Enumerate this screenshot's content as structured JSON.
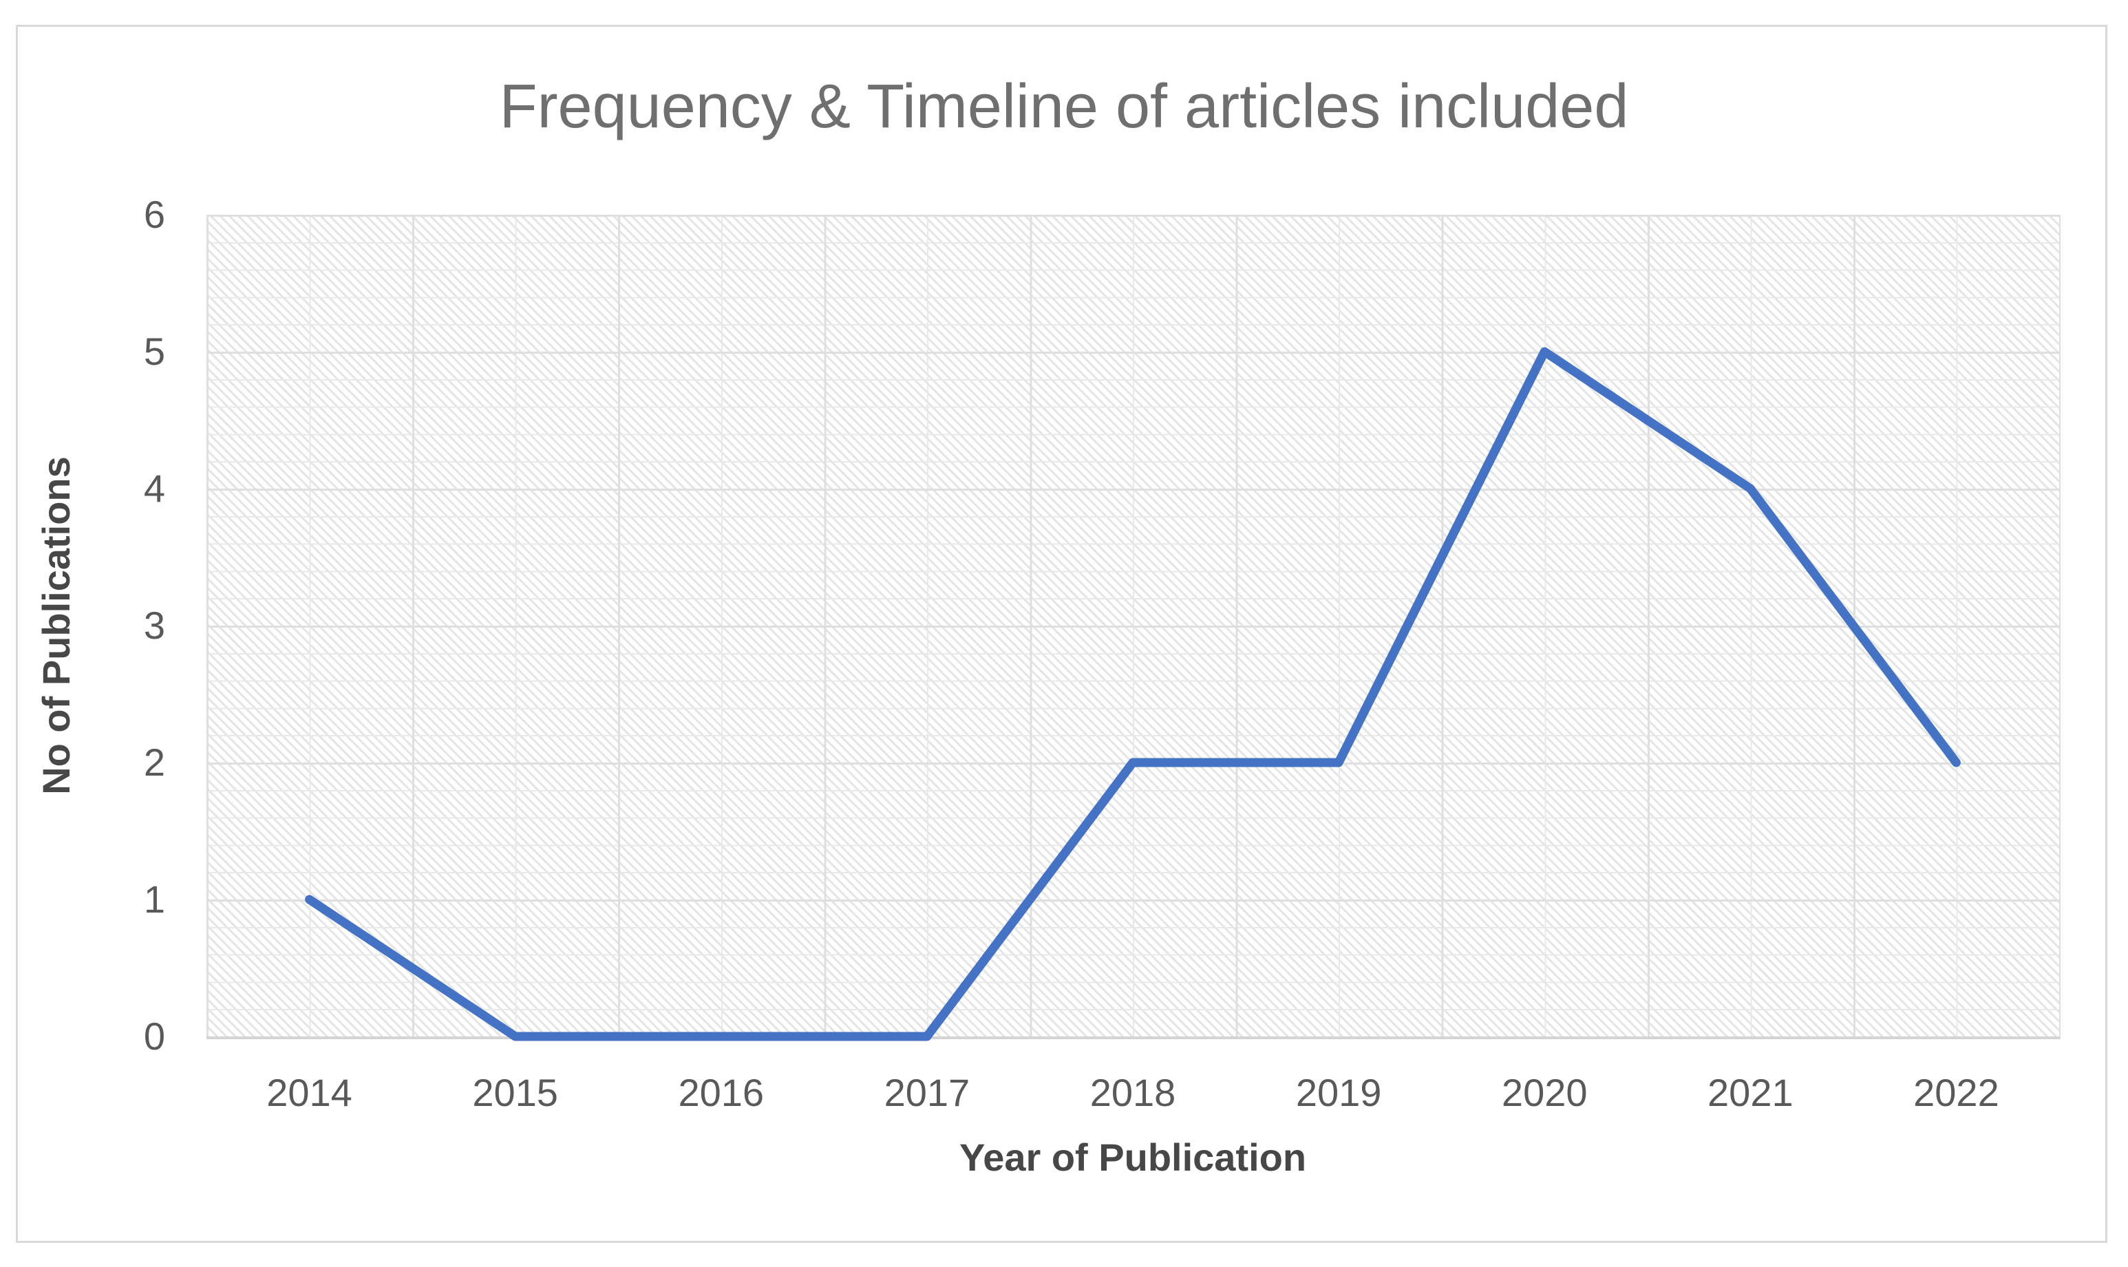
{
  "chart": {
    "title": "Frequency & Timeline of articles included",
    "x_axis_title": "Year of Publication",
    "y_axis_title": "No of Publications"
  },
  "chart_data": {
    "type": "line",
    "title": "Frequency & Timeline of articles included",
    "xlabel": "Year of Publication",
    "ylabel": "No of Publications",
    "categories": [
      "2014",
      "2015",
      "2016",
      "2017",
      "2018",
      "2019",
      "2020",
      "2021",
      "2022"
    ],
    "series": [
      {
        "name": "No of Publications",
        "values": [
          1,
          0,
          0,
          0,
          2,
          2,
          5,
          4,
          2
        ]
      }
    ],
    "ylim": [
      0,
      6
    ],
    "y_ticks": [
      0,
      1,
      2,
      3,
      4,
      5,
      6
    ],
    "grid": "major and minor gridlines on both axes, light gray",
    "legend_position": "none",
    "line_color": "#4472C4",
    "plot_background": "white with light diagonal hatch pattern",
    "gridline_color": "#dfdfdf",
    "axis_line_color": "#d4d4d4",
    "title_color": "#6f6f6f",
    "tick_label_color": "#595959"
  }
}
